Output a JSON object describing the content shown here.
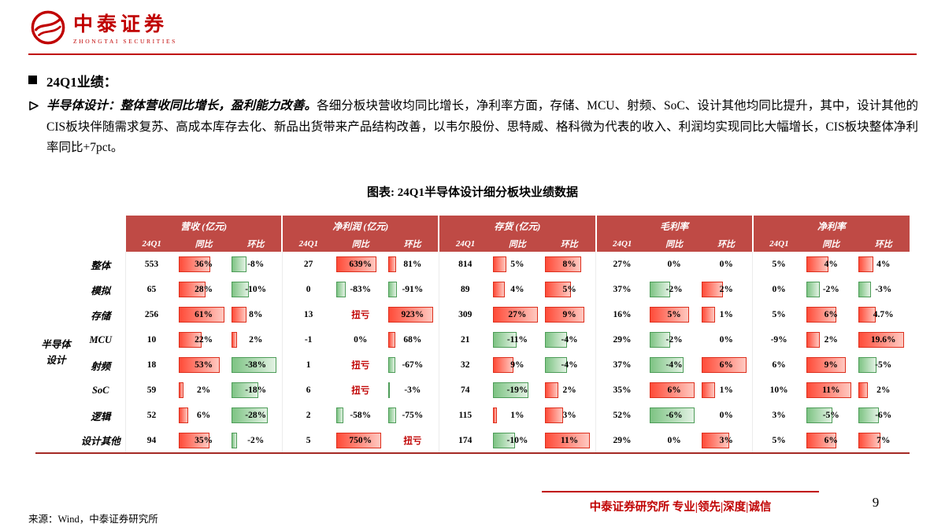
{
  "brand": {
    "name": "中泰证券",
    "subtitle": "ZHONGTAI SECURITIES"
  },
  "section": {
    "heading": "24Q1业绩："
  },
  "bullet": {
    "lead": "半导体设计：整体营收同比增长，盈利能力改善。",
    "body": "各细分板块营收均同比增长，净利率方面，存储、MCU、射频、SoC、设计其他均同比提升，其中，设计其他的CIS板块伴随需求复苏、高成本库存去化、新品出货带来产品结构改善，以韦尔股份、思特威、格科微为代表的收入、利润均实现同比大幅增长，CIS板块整体净利率同比+7pct。"
  },
  "icons": {
    "logo": "zhongtai-securities-emblem",
    "section_bullet": "black-square",
    "item_bullet": "arrow-right-outline"
  },
  "colors": {
    "brand_red": "#c00000",
    "header_bg": "#bf4a45",
    "bar_positive": "#ff4b38",
    "bar_negative": "#7dc383",
    "loss_text": "#c00000"
  },
  "footer": {
    "source": "来源：Wind，中泰证券研究所",
    "slogan": "中泰证券研究所 专业|领先|深度|诚信",
    "page": "9"
  },
  "chart_data": {
    "type": "table",
    "title": "图表: 24Q1半导体设计细分板块业绩数据",
    "row_group_label": "半导体\n设计",
    "column_groups": [
      "营收 (亿元)",
      "净利润 (亿元)",
      "存货 (亿元)",
      "毛利率",
      "净利率"
    ],
    "sub_columns": [
      "24Q1",
      "同比",
      "环比"
    ],
    "bar_note": "同比/环比 columns carry data bars: red = positive, green = negative; 扭亏 shown as red text",
    "rows": [
      {
        "label": "整体",
        "values": [
          "553",
          "36%",
          "-8%",
          "27",
          "639%",
          "81%",
          "814",
          "5%",
          "8%",
          "27%",
          "0%",
          "0%",
          "5%",
          "4%",
          "4%"
        ]
      },
      {
        "label": "模拟",
        "values": [
          "65",
          "28%",
          "-10%",
          "0",
          "-83%",
          "-91%",
          "89",
          "4%",
          "5%",
          "37%",
          "-2%",
          "2%",
          "0%",
          "-2%",
          "-3%"
        ]
      },
      {
        "label": "存储",
        "values": [
          "256",
          "61%",
          "8%",
          "13",
          "扭亏",
          "923%",
          "309",
          "27%",
          "9%",
          "16%",
          "5%",
          "1%",
          "5%",
          "6%",
          "4.7%"
        ]
      },
      {
        "label": "MCU",
        "values": [
          "10",
          "22%",
          "2%",
          "-1",
          "0%",
          "68%",
          "21",
          "-11%",
          "-4%",
          "29%",
          "-2%",
          "0%",
          "-9%",
          "2%",
          "19.6%"
        ]
      },
      {
        "label": "射频",
        "values": [
          "18",
          "53%",
          "-38%",
          "1",
          "扭亏",
          "-67%",
          "32",
          "9%",
          "-4%",
          "37%",
          "-4%",
          "6%",
          "6%",
          "9%",
          "-5%"
        ]
      },
      {
        "label": "SoC",
        "values": [
          "59",
          "2%",
          "-18%",
          "6",
          "扭亏",
          "-3%",
          "74",
          "-19%",
          "2%",
          "35%",
          "6%",
          "1%",
          "10%",
          "11%",
          "2%"
        ]
      },
      {
        "label": "逻辑",
        "values": [
          "52",
          "6%",
          "-28%",
          "2",
          "-58%",
          "-75%",
          "115",
          "1%",
          "3%",
          "52%",
          "-6%",
          "0%",
          "3%",
          "-5%",
          "-6%"
        ]
      },
      {
        "label": "设计其他",
        "values": [
          "94",
          "35%",
          "-2%",
          "5",
          "750%",
          "扭亏",
          "174",
          "-10%",
          "11%",
          "29%",
          "0%",
          "3%",
          "5%",
          "6%",
          "7%"
        ]
      }
    ]
  }
}
